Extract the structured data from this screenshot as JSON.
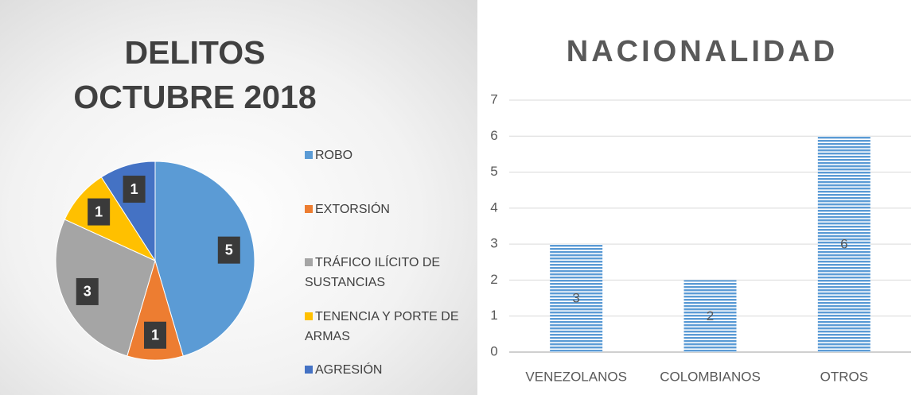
{
  "chart_data": [
    {
      "type": "pie",
      "title": "DELITOS OCTUBRE 2018",
      "categories": [
        "ROBO",
        "EXTORSIÓN",
        "TRÁFICO ILÍCITO DE SUSTANCIAS",
        "TENENCIA Y PORTE DE ARMAS",
        "AGRESIÓN"
      ],
      "values": [
        5,
        1,
        3,
        1,
        1
      ],
      "colors": [
        "#5b9bd5",
        "#ed7d31",
        "#a5a5a5",
        "#ffc000",
        "#4472c4"
      ],
      "legend": "right"
    },
    {
      "type": "bar",
      "title": "NACIONALIDAD",
      "categories": [
        "VENEZOLANOS",
        "COLOMBIANOS",
        "OTROS"
      ],
      "values": [
        3,
        2,
        6
      ],
      "color": "#5b9bd5",
      "ylim": [
        0,
        7
      ],
      "yticks": [
        0,
        1,
        2,
        3,
        4,
        5,
        6,
        7
      ],
      "grid": true
    }
  ]
}
